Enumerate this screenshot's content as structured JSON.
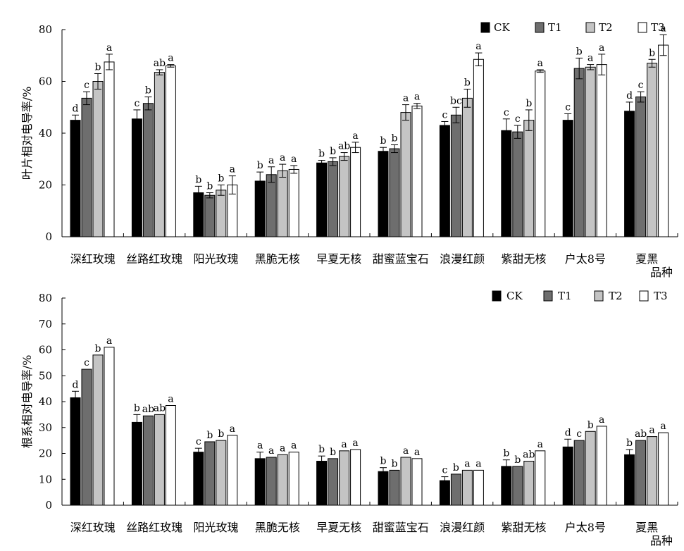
{
  "colors": {
    "CK": "#000000",
    "T1": "#6e6e6e",
    "T2": "#c4c4c4",
    "T3": "#ffffff"
  },
  "chart_data": [
    {
      "type": "bar",
      "ylabel": "叶片相对电导率/%",
      "xlabel": "品种",
      "ylim": [
        0,
        80
      ],
      "yticks": [
        0,
        20,
        40,
        60,
        80
      ],
      "legend_position": "top-right",
      "categories": [
        "深红玫瑰",
        "丝路红玫瑰",
        "阳光玫瑰",
        "黑脆无核",
        "早夏无核",
        "甜蜜蓝宝石",
        "浪漫红颜",
        "紫甜无核",
        "户太8号",
        "夏黑"
      ],
      "series": [
        {
          "name": "CK",
          "values": [
            45,
            45.5,
            17,
            21.5,
            28.5,
            33,
            43,
            41,
            45,
            48.5
          ],
          "errors": [
            2,
            3.5,
            2.5,
            3.5,
            1,
            1.5,
            1.5,
            4.5,
            2.5,
            3.5
          ],
          "labels": [
            "d",
            "c",
            "b",
            "b",
            "b",
            "b",
            "c",
            "c",
            "c",
            "d"
          ]
        },
        {
          "name": "T1",
          "values": [
            53.5,
            51.5,
            16,
            24,
            29,
            34,
            47,
            40.5,
            65,
            54
          ],
          "errors": [
            2.5,
            2.5,
            1,
            3,
            1.5,
            1.5,
            3,
            2.5,
            4,
            2
          ],
          "labels": [
            "c",
            "b",
            "b",
            "a",
            "b",
            "b",
            "bc",
            "c",
            "b",
            "c"
          ]
        },
        {
          "name": "T2",
          "values": [
            60,
            63.5,
            18,
            25.5,
            31,
            48,
            53.5,
            45,
            65.5,
            67
          ],
          "errors": [
            3,
            1,
            2,
            2.5,
            1.5,
            3,
            3.5,
            4,
            1,
            1.5
          ],
          "labels": [
            "b",
            "ab",
            "b",
            "a",
            "ab",
            "a",
            "b",
            "b",
            "a",
            "b"
          ]
        },
        {
          "name": "T3",
          "values": [
            67.5,
            66,
            20,
            26,
            34.5,
            50.5,
            68.5,
            64,
            66.5,
            74
          ],
          "errors": [
            3,
            0.5,
            3.5,
            1.5,
            2,
            1,
            2.5,
            0.5,
            4,
            4
          ],
          "labels": [
            "a",
            "a",
            "a",
            "a",
            "a",
            "a",
            "a",
            "a",
            "a",
            "a"
          ]
        }
      ]
    },
    {
      "type": "bar",
      "ylabel": "根系相对电导率/%",
      "xlabel": "品种",
      "ylim": [
        0,
        80
      ],
      "yticks": [
        0,
        10,
        20,
        30,
        40,
        50,
        60,
        70,
        80
      ],
      "legend_position": "top-right",
      "categories": [
        "深红玫瑰",
        "丝路红玫瑰",
        "阳光玫瑰",
        "黑脆无核",
        "早夏无核",
        "甜蜜蓝宝石",
        "浪漫红颜",
        "紫甜无核",
        "户太8号",
        "夏黑"
      ],
      "series": [
        {
          "name": "CK",
          "values": [
            41.5,
            32,
            20.5,
            18,
            17,
            13,
            9.5,
            15,
            22.5,
            19.5
          ],
          "errors": [
            2.5,
            3,
            1.5,
            2.5,
            2,
            1.5,
            1.5,
            2.5,
            3,
            2
          ],
          "labels": [
            "d",
            "b",
            "c",
            "a",
            "b",
            "b",
            "c",
            "b",
            "d",
            "b"
          ]
        },
        {
          "name": "T1",
          "values": [
            52.5,
            34.5,
            24.5,
            18.5,
            18,
            13.5,
            12,
            15,
            25,
            25
          ],
          "errors": [
            0,
            0,
            0,
            0,
            0,
            0,
            0,
            0,
            0,
            0
          ],
          "labels": [
            "c",
            "ab",
            "b",
            "a",
            "b",
            "b",
            "b",
            "b",
            "c",
            "ab"
          ]
        },
        {
          "name": "T2",
          "values": [
            58,
            35,
            25,
            19.5,
            21,
            18.5,
            13.5,
            17,
            28.5,
            26.5
          ],
          "errors": [
            0,
            0,
            0,
            0,
            0,
            0,
            0,
            0,
            0,
            0
          ],
          "labels": [
            "b",
            "ab",
            "b",
            "a",
            "a",
            "a",
            "a",
            "ab",
            "b",
            "a"
          ]
        },
        {
          "name": "T3",
          "values": [
            61,
            38.5,
            27,
            20.5,
            21.5,
            18,
            13.5,
            21,
            30.5,
            28
          ],
          "errors": [
            0,
            0,
            0,
            0,
            0,
            0,
            0,
            0,
            0,
            0
          ],
          "labels": [
            "a",
            "a",
            "a",
            "a",
            "a",
            "a",
            "a",
            "a",
            "a",
            "a"
          ]
        }
      ]
    }
  ]
}
